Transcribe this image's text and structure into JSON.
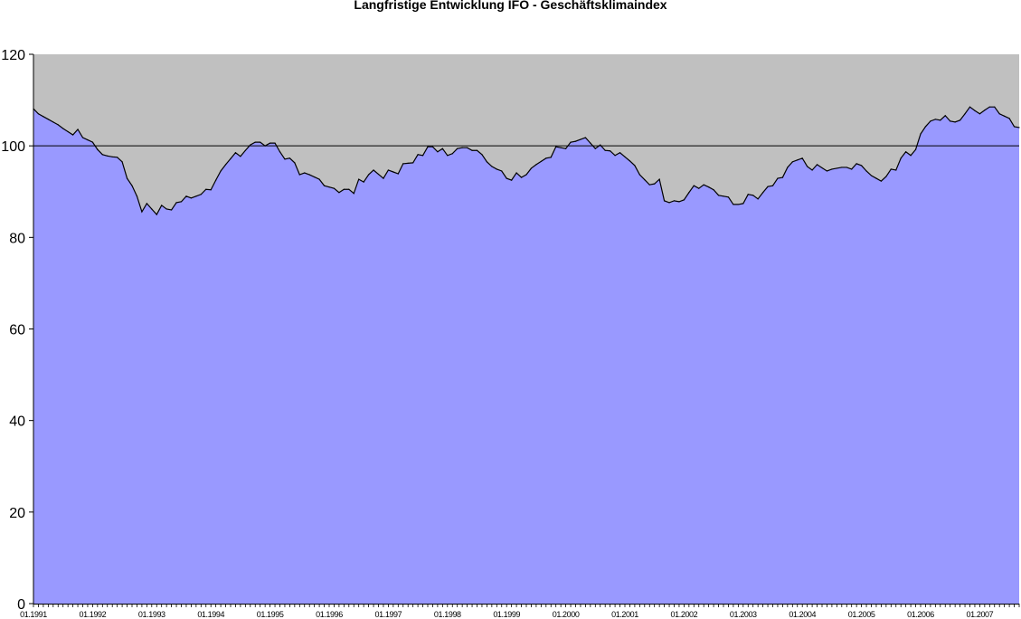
{
  "chart_data": {
    "type": "area",
    "title": "Langfristige Entwicklung IFO - Geschäftsklimaindex",
    "xlabel": "",
    "ylabel": "",
    "ylim": [
      0,
      120
    ],
    "yticks": [
      0,
      20,
      40,
      60,
      80,
      100,
      120
    ],
    "xtick_labels": [
      "01.1991",
      "01.1992",
      "01.1993",
      "01.1994",
      "01.1995",
      "01.1996",
      "01.1997",
      "01.1998",
      "01.1999",
      "01.2000",
      "01.2001",
      "01.2002",
      "01.2003",
      "01.2004",
      "01.2005",
      "01.2006",
      "01.2007"
    ],
    "reference_line": 100,
    "grid": false,
    "legend": "none",
    "colors": {
      "area_fill": "#9999FF",
      "plot_background": "#C0C0C0",
      "line": "#000000"
    },
    "x": [
      "01.1991",
      "02.1991",
      "03.1991",
      "04.1991",
      "05.1991",
      "06.1991",
      "07.1991",
      "08.1991",
      "09.1991",
      "10.1991",
      "11.1991",
      "12.1991",
      "01.1992",
      "02.1992",
      "03.1992",
      "04.1992",
      "05.1992",
      "06.1992",
      "07.1992",
      "08.1992",
      "09.1992",
      "10.1992",
      "11.1992",
      "12.1992",
      "01.1993",
      "02.1993",
      "03.1993",
      "04.1993",
      "05.1993",
      "06.1993",
      "07.1993",
      "08.1993",
      "09.1993",
      "10.1993",
      "11.1993",
      "12.1993",
      "01.1994",
      "02.1994",
      "03.1994",
      "04.1994",
      "05.1994",
      "06.1994",
      "07.1994",
      "08.1994",
      "09.1994",
      "10.1994",
      "11.1994",
      "12.1994",
      "01.1995",
      "02.1995",
      "03.1995",
      "04.1995",
      "05.1995",
      "06.1995",
      "07.1995",
      "08.1995",
      "09.1995",
      "10.1995",
      "11.1995",
      "12.1995",
      "01.1996",
      "02.1996",
      "03.1996",
      "04.1996",
      "05.1996",
      "06.1996",
      "07.1996",
      "08.1996",
      "09.1996",
      "10.1996",
      "11.1996",
      "12.1996",
      "01.1997",
      "02.1997",
      "03.1997",
      "04.1997",
      "05.1997",
      "06.1997",
      "07.1997",
      "08.1997",
      "09.1997",
      "10.1997",
      "11.1997",
      "12.1997",
      "01.1998",
      "02.1998",
      "03.1998",
      "04.1998",
      "05.1998",
      "06.1998",
      "07.1998",
      "08.1998",
      "09.1998",
      "10.1998",
      "11.1998",
      "12.1998",
      "01.1999",
      "02.1999",
      "03.1999",
      "04.1999",
      "05.1999",
      "06.1999",
      "07.1999",
      "08.1999",
      "09.1999",
      "10.1999",
      "11.1999",
      "12.1999",
      "01.2000",
      "02.2000",
      "03.2000",
      "04.2000",
      "05.2000",
      "06.2000",
      "07.2000",
      "08.2000",
      "09.2000",
      "10.2000",
      "11.2000",
      "12.2000",
      "01.2001",
      "02.2001",
      "03.2001",
      "04.2001",
      "05.2001",
      "06.2001",
      "07.2001",
      "08.2001",
      "09.2001",
      "10.2001",
      "11.2001",
      "12.2001",
      "01.2002",
      "02.2002",
      "03.2002",
      "04.2002",
      "05.2002",
      "06.2002",
      "07.2002",
      "08.2002",
      "09.2002",
      "10.2002",
      "11.2002",
      "12.2002",
      "01.2003",
      "02.2003",
      "03.2003",
      "04.2003",
      "05.2003",
      "06.2003",
      "07.2003",
      "08.2003",
      "09.2003",
      "10.2003",
      "11.2003",
      "12.2003",
      "01.2004",
      "02.2004",
      "03.2004",
      "04.2004",
      "05.2004",
      "06.2004",
      "07.2004",
      "08.2004",
      "09.2004",
      "10.2004",
      "11.2004",
      "12.2004",
      "01.2005",
      "02.2005",
      "03.2005",
      "04.2005",
      "05.2005",
      "06.2005",
      "07.2005",
      "08.2005",
      "09.2005",
      "10.2005",
      "11.2005",
      "12.2005",
      "01.2006",
      "02.2006",
      "03.2006",
      "04.2006",
      "05.2006",
      "06.2006",
      "07.2006",
      "08.2006",
      "09.2006",
      "10.2006",
      "11.2006",
      "12.2006",
      "01.2007",
      "02.2007",
      "03.2007",
      "04.2007",
      "05.2007",
      "06.2007",
      "07.2007",
      "08.2007",
      "09.2007"
    ],
    "values": [
      108.1,
      107.0,
      106.4,
      105.8,
      105.2,
      104.6,
      103.8,
      103.1,
      102.4,
      103.6,
      101.8,
      101.3,
      100.8,
      99.2,
      98.1,
      97.8,
      97.6,
      97.5,
      96.5,
      92.9,
      91.3,
      89.0,
      85.6,
      87.4,
      86.2,
      85.0,
      87.0,
      86.2,
      86.0,
      87.6,
      87.8,
      89.0,
      88.6,
      89.0,
      89.4,
      90.5,
      90.4,
      92.5,
      94.5,
      95.9,
      97.2,
      98.5,
      97.7,
      99.0,
      100.2,
      100.8,
      100.8,
      100.0,
      100.6,
      100.6,
      98.7,
      97.1,
      97.3,
      96.3,
      93.7,
      94.1,
      93.7,
      93.2,
      92.7,
      91.3,
      91.0,
      90.7,
      89.8,
      90.5,
      90.5,
      89.6,
      92.7,
      92.1,
      93.7,
      94.7,
      93.8,
      92.9,
      94.7,
      94.3,
      93.9,
      96.1,
      96.2,
      96.3,
      98.1,
      97.9,
      99.8,
      99.8,
      98.7,
      99.4,
      97.9,
      98.3,
      99.4,
      99.6,
      99.6,
      99.0,
      99.0,
      98.1,
      96.5,
      95.5,
      94.9,
      94.5,
      92.9,
      92.5,
      94.1,
      93.1,
      93.7,
      95.1,
      95.9,
      96.6,
      97.3,
      97.5,
      99.8,
      99.6,
      99.4,
      100.8,
      101.0,
      101.4,
      101.8,
      100.6,
      99.4,
      100.2,
      99.0,
      98.9,
      97.9,
      98.5,
      97.6,
      96.7,
      95.7,
      93.7,
      92.6,
      91.5,
      91.7,
      92.7,
      88.0,
      87.6,
      88.0,
      87.8,
      88.2,
      89.8,
      91.3,
      90.7,
      91.5,
      91.0,
      90.4,
      89.2,
      89.0,
      88.8,
      87.2,
      87.2,
      87.4,
      89.4,
      89.2,
      88.4,
      89.8,
      91.1,
      91.3,
      92.9,
      93.1,
      95.3,
      96.5,
      96.9,
      97.3,
      95.5,
      94.7,
      95.9,
      95.2,
      94.5,
      94.9,
      95.1,
      95.3,
      95.3,
      94.9,
      96.1,
      95.7,
      94.5,
      93.5,
      92.9,
      92.3,
      93.3,
      94.9,
      94.7,
      97.3,
      98.7,
      97.9,
      99.2,
      102.6,
      104.2,
      105.4,
      105.8,
      105.6,
      106.6,
      105.4,
      105.2,
      105.6,
      107.0,
      108.5,
      107.7,
      107.0,
      107.8,
      108.5,
      108.5,
      107.0,
      106.5,
      106.0,
      104.2,
      104.0
    ]
  }
}
